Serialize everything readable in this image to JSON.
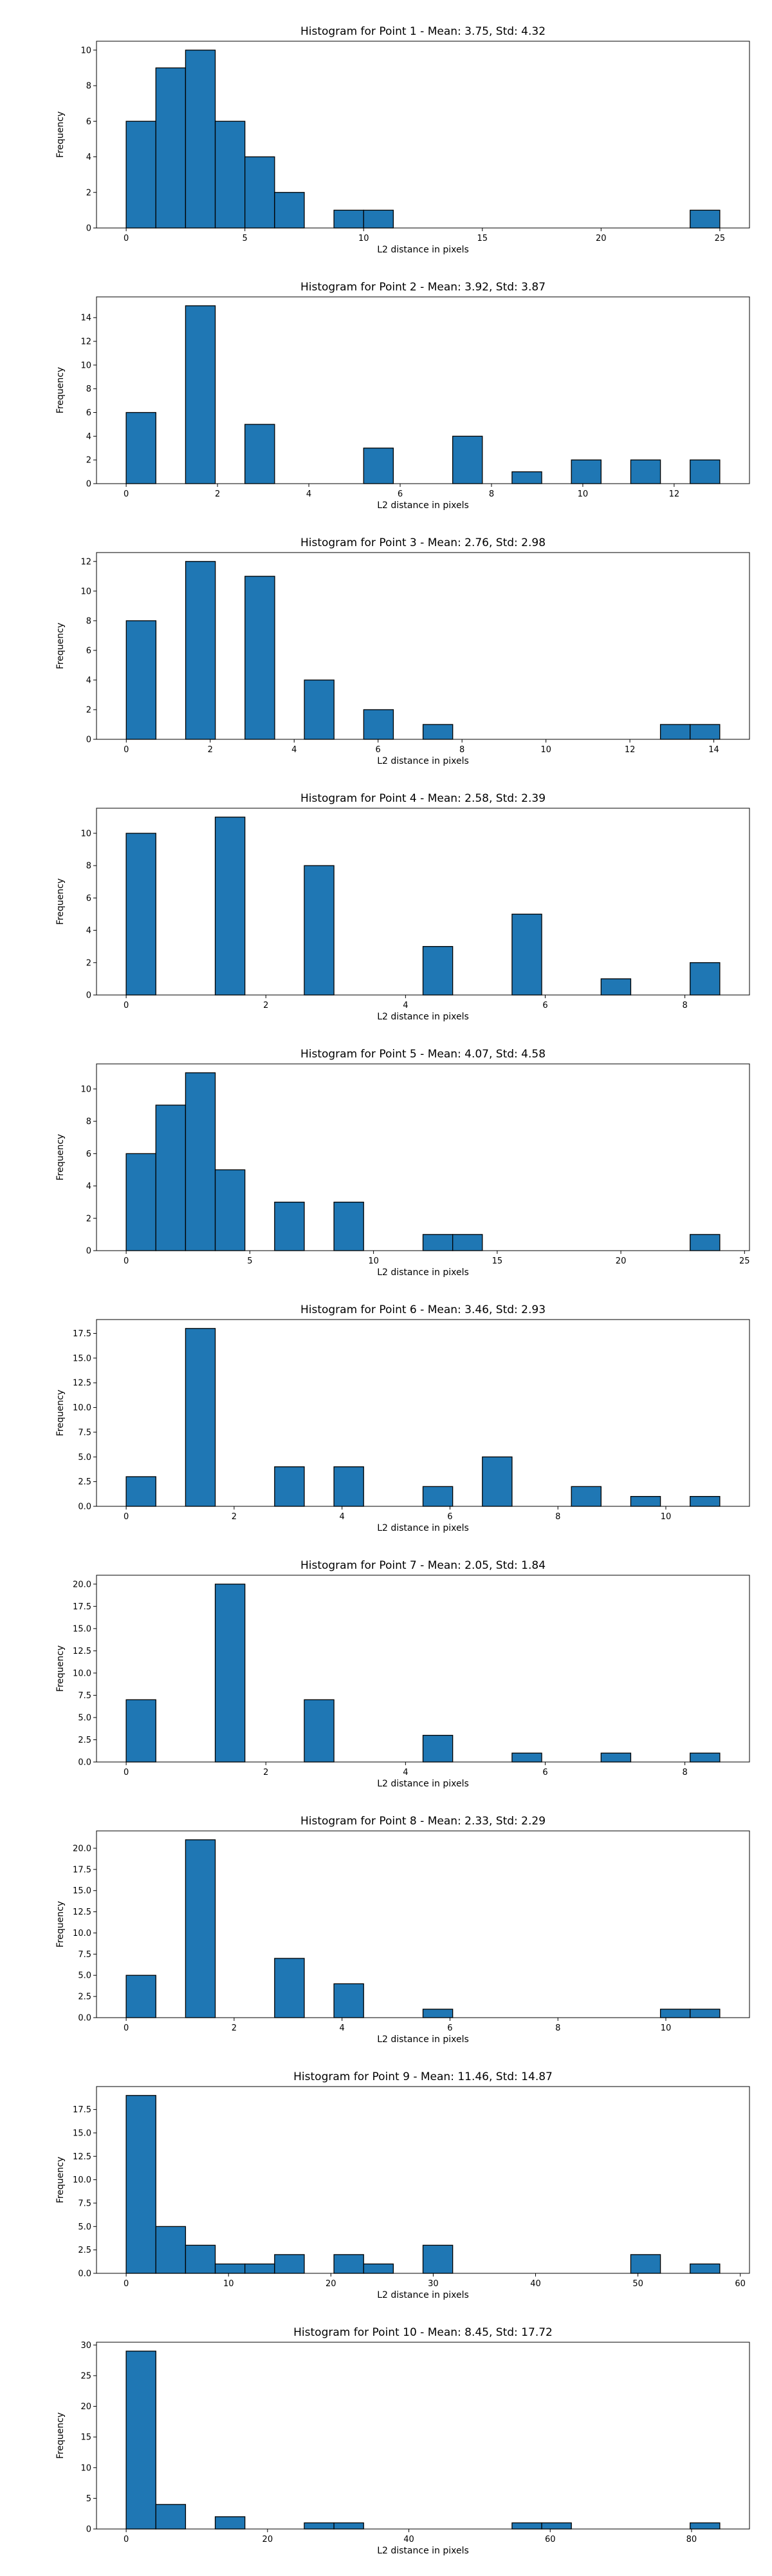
{
  "chart_data": [
    {
      "type": "bar",
      "title": "Histogram for Point 1 - Mean: 3.75, Std: 4.32",
      "xlabel": "L2 distance in pixels",
      "ylabel": "Frequency",
      "xlim": [
        -1.25,
        26.25
      ],
      "ylim": [
        0,
        10.5
      ],
      "bin_edges": [
        0,
        1.25,
        2.5,
        3.75,
        5,
        6.25,
        7.5,
        8.75,
        10,
        11.25,
        12.5,
        13.75,
        15,
        16.25,
        17.5,
        18.75,
        20,
        21.25,
        22.5,
        23.75,
        25
      ],
      "values": [
        6,
        9,
        10,
        6,
        4,
        2,
        0,
        1,
        1,
        0,
        0,
        0,
        0,
        0,
        0,
        0,
        0,
        0,
        0,
        1
      ],
      "xticks": [
        0,
        5,
        10,
        15,
        20,
        25
      ],
      "xtick_labels": [
        "0",
        "5",
        "10",
        "15",
        "20",
        "25"
      ],
      "yticks": [
        0,
        2,
        4,
        6,
        8,
        10
      ],
      "ytick_labels": [
        "0",
        "2",
        "4",
        "6",
        "8",
        "10"
      ],
      "grid": false,
      "bar_color": "#1f77b4",
      "edge_color": "#000000"
    },
    {
      "type": "bar",
      "title": "Histogram for Point 2 - Mean: 3.92, Std: 3.87",
      "xlabel": "L2 distance in pixels",
      "ylabel": "Frequency",
      "xlim": [
        -0.65,
        13.65
      ],
      "ylim": [
        0,
        15.75
      ],
      "bin_edges": [
        0,
        0.65,
        1.3,
        1.95,
        2.6,
        3.25,
        3.9,
        4.55,
        5.2,
        5.85,
        6.5,
        7.15,
        7.8,
        8.45,
        9.1,
        9.75,
        10.4,
        11.05,
        11.7,
        12.35,
        13
      ],
      "values": [
        6,
        0,
        15,
        0,
        5,
        0,
        0,
        0,
        3,
        0,
        0,
        4,
        0,
        1,
        0,
        2,
        0,
        2,
        0,
        2
      ],
      "xticks": [
        0,
        2,
        4,
        6,
        8,
        10,
        12
      ],
      "xtick_labels": [
        "0",
        "2",
        "4",
        "6",
        "8",
        "10",
        "12"
      ],
      "yticks": [
        0,
        2,
        4,
        6,
        8,
        10,
        12,
        14
      ],
      "ytick_labels": [
        "0",
        "2",
        "4",
        "6",
        "8",
        "10",
        "12",
        "14"
      ],
      "grid": false,
      "bar_color": "#1f77b4",
      "edge_color": "#000000"
    },
    {
      "type": "bar",
      "title": "Histogram for Point 3 - Mean: 2.76, Std: 2.98",
      "xlabel": "L2 distance in pixels",
      "ylabel": "Frequency",
      "xlim": [
        -0.71,
        14.85
      ],
      "ylim": [
        0,
        12.6
      ],
      "bin_edges": [
        0,
        0.707,
        1.414,
        2.121,
        2.828,
        3.536,
        4.243,
        4.95,
        5.657,
        6.364,
        7.071,
        7.778,
        8.485,
        9.192,
        9.899,
        10.607,
        11.314,
        12.021,
        12.728,
        13.435,
        14.142
      ],
      "values": [
        8,
        0,
        12,
        0,
        11,
        0,
        4,
        0,
        2,
        0,
        1,
        0,
        0,
        0,
        0,
        0,
        0,
        0,
        1,
        1
      ],
      "xticks": [
        0,
        2,
        4,
        6,
        8,
        10,
        12,
        14
      ],
      "xtick_labels": [
        "0",
        "2",
        "4",
        "6",
        "8",
        "10",
        "12",
        "14"
      ],
      "yticks": [
        0,
        2,
        4,
        6,
        8,
        10,
        12
      ],
      "ytick_labels": [
        "0",
        "2",
        "4",
        "6",
        "8",
        "10",
        "12"
      ],
      "grid": false,
      "bar_color": "#1f77b4",
      "edge_color": "#000000"
    },
    {
      "type": "bar",
      "title": "Histogram for Point 4 - Mean: 2.58, Std: 2.39",
      "xlabel": "L2 distance in pixels",
      "ylabel": "Frequency",
      "xlim": [
        -0.425,
        8.925
      ],
      "ylim": [
        0,
        11.55
      ],
      "bin_edges": [
        0,
        0.425,
        0.85,
        1.275,
        1.7,
        2.125,
        2.55,
        2.975,
        3.4,
        3.825,
        4.25,
        4.675,
        5.1,
        5.525,
        5.95,
        6.375,
        6.8,
        7.225,
        7.65,
        8.075,
        8.5
      ],
      "values": [
        10,
        0,
        0,
        11,
        0,
        0,
        8,
        0,
        0,
        0,
        3,
        0,
        0,
        5,
        0,
        0,
        1,
        0,
        0,
        2
      ],
      "xticks": [
        0,
        2,
        4,
        6,
        8
      ],
      "xtick_labels": [
        "0",
        "2",
        "4",
        "6",
        "8"
      ],
      "yticks": [
        0,
        2,
        4,
        6,
        8,
        10
      ],
      "ytick_labels": [
        "0",
        "2",
        "4",
        "6",
        "8",
        "10"
      ],
      "grid": false,
      "bar_color": "#1f77b4",
      "edge_color": "#000000"
    },
    {
      "type": "bar",
      "title": "Histogram for Point 5 - Mean: 4.07, Std: 4.58",
      "xlabel": "L2 distance in pixels",
      "ylabel": "Frequency",
      "xlim": [
        -1.2,
        25.2
      ],
      "ylim": [
        0,
        11.55
      ],
      "bin_edges": [
        0,
        1.2,
        2.4,
        3.6,
        4.8,
        6,
        7.2,
        8.4,
        9.6,
        10.8,
        12,
        13.2,
        14.4,
        15.6,
        16.8,
        18,
        19.2,
        20.4,
        21.6,
        22.8,
        24
      ],
      "values": [
        6,
        9,
        11,
        5,
        0,
        3,
        0,
        3,
        0,
        0,
        1,
        1,
        0,
        0,
        0,
        0,
        0,
        0,
        0,
        1
      ],
      "xticks": [
        0,
        5,
        10,
        15,
        20,
        25
      ],
      "xtick_labels": [
        "0",
        "5",
        "10",
        "15",
        "20",
        "25"
      ],
      "yticks": [
        0,
        2,
        4,
        6,
        8,
        10
      ],
      "ytick_labels": [
        "0",
        "2",
        "4",
        "6",
        "8",
        "10"
      ],
      "grid": false,
      "bar_color": "#1f77b4",
      "edge_color": "#000000"
    },
    {
      "type": "bar",
      "title": "Histogram for Point 6 - Mean: 3.46, Std: 2.93",
      "xlabel": "L2 distance in pixels",
      "ylabel": "Frequency",
      "xlim": [
        -0.55,
        11.55
      ],
      "ylim": [
        0,
        18.9
      ],
      "bin_edges": [
        0,
        0.55,
        1.1,
        1.65,
        2.2,
        2.75,
        3.3,
        3.85,
        4.4,
        4.95,
        5.5,
        6.05,
        6.6,
        7.15,
        7.7,
        8.25,
        8.8,
        9.35,
        9.9,
        10.45,
        11
      ],
      "values": [
        3,
        0,
        18,
        0,
        0,
        4,
        0,
        4,
        0,
        0,
        2,
        0,
        5,
        0,
        0,
        2,
        0,
        1,
        0,
        1
      ],
      "xticks": [
        0,
        2,
        4,
        6,
        8,
        10
      ],
      "xtick_labels": [
        "0",
        "2",
        "4",
        "6",
        "8",
        "10"
      ],
      "yticks": [
        0,
        2.5,
        5,
        7.5,
        10,
        12.5,
        15,
        17.5
      ],
      "ytick_labels": [
        "0.0",
        "2.5",
        "5.0",
        "7.5",
        "10.0",
        "12.5",
        "15.0",
        "17.5"
      ],
      "grid": false,
      "bar_color": "#1f77b4",
      "edge_color": "#000000"
    },
    {
      "type": "bar",
      "title": "Histogram for Point 7 - Mean: 2.05, Std: 1.84",
      "xlabel": "L2 distance in pixels",
      "ylabel": "Frequency",
      "xlim": [
        -0.425,
        8.925
      ],
      "ylim": [
        0,
        21
      ],
      "bin_edges": [
        0,
        0.425,
        0.85,
        1.275,
        1.7,
        2.125,
        2.55,
        2.975,
        3.4,
        3.825,
        4.25,
        4.675,
        5.1,
        5.525,
        5.95,
        6.375,
        6.8,
        7.225,
        7.65,
        8.075,
        8.5
      ],
      "values": [
        7,
        0,
        0,
        20,
        0,
        0,
        7,
        0,
        0,
        0,
        3,
        0,
        0,
        1,
        0,
        0,
        1,
        0,
        0,
        1
      ],
      "xticks": [
        0,
        2,
        4,
        6,
        8
      ],
      "xtick_labels": [
        "0",
        "2",
        "4",
        "6",
        "8"
      ],
      "yticks": [
        0,
        2.5,
        5,
        7.5,
        10,
        12.5,
        15,
        17.5,
        20
      ],
      "ytick_labels": [
        "0.0",
        "2.5",
        "5.0",
        "7.5",
        "10.0",
        "12.5",
        "15.0",
        "17.5",
        "20.0"
      ],
      "grid": false,
      "bar_color": "#1f77b4",
      "edge_color": "#000000"
    },
    {
      "type": "bar",
      "title": "Histogram for Point 8 - Mean: 2.33, Std: 2.29",
      "xlabel": "L2 distance in pixels",
      "ylabel": "Frequency",
      "xlim": [
        -0.55,
        11.55
      ],
      "ylim": [
        0,
        22.05
      ],
      "bin_edges": [
        0,
        0.55,
        1.1,
        1.65,
        2.2,
        2.75,
        3.3,
        3.85,
        4.4,
        4.95,
        5.5,
        6.05,
        6.6,
        7.15,
        7.7,
        8.25,
        8.8,
        9.35,
        9.9,
        10.45,
        11
      ],
      "values": [
        5,
        0,
        21,
        0,
        0,
        7,
        0,
        4,
        0,
        0,
        1,
        0,
        0,
        0,
        0,
        0,
        0,
        0,
        1,
        1
      ],
      "xticks": [
        0,
        2,
        4,
        6,
        8,
        10
      ],
      "xtick_labels": [
        "0",
        "2",
        "4",
        "6",
        "8",
        "10"
      ],
      "yticks": [
        0,
        2.5,
        5,
        7.5,
        10,
        12.5,
        15,
        17.5,
        20
      ],
      "ytick_labels": [
        "0.0",
        "2.5",
        "5.0",
        "7.5",
        "10.0",
        "12.5",
        "15.0",
        "17.5",
        "20.0"
      ],
      "grid": false,
      "bar_color": "#1f77b4",
      "edge_color": "#000000"
    },
    {
      "type": "bar",
      "title": "Histogram for Point 9 - Mean: 11.46, Std: 14.87",
      "xlabel": "L2 distance in pixels",
      "ylabel": "Frequency",
      "xlim": [
        -2.9,
        60.9
      ],
      "ylim": [
        0,
        19.95
      ],
      "bin_edges": [
        0,
        2.9,
        5.8,
        8.7,
        11.6,
        14.5,
        17.4,
        20.3,
        23.2,
        26.1,
        29,
        31.9,
        34.8,
        37.7,
        40.6,
        43.5,
        46.4,
        49.3,
        52.2,
        55.1,
        58
      ],
      "values": [
        19,
        5,
        3,
        1,
        1,
        2,
        0,
        2,
        1,
        0,
        3,
        0,
        0,
        0,
        0,
        0,
        0,
        2,
        0,
        1
      ],
      "xticks": [
        0,
        10,
        20,
        30,
        40,
        50,
        60
      ],
      "xtick_labels": [
        "0",
        "10",
        "20",
        "30",
        "40",
        "50",
        "60"
      ],
      "yticks": [
        0,
        2.5,
        5,
        7.5,
        10,
        12.5,
        15,
        17.5
      ],
      "ytick_labels": [
        "0.0",
        "2.5",
        "5.0",
        "7.5",
        "10.0",
        "12.5",
        "15.0",
        "17.5"
      ],
      "grid": false,
      "bar_color": "#1f77b4",
      "edge_color": "#000000"
    },
    {
      "type": "bar",
      "title": "Histogram for Point 10 - Mean: 8.45, Std: 17.72",
      "xlabel": "L2 distance in pixels",
      "ylabel": "Frequency",
      "xlim": [
        -4.2,
        88.2
      ],
      "ylim": [
        0,
        30.45
      ],
      "bin_edges": [
        0,
        4.2,
        8.4,
        12.6,
        16.8,
        21,
        25.2,
        29.4,
        33.6,
        37.8,
        42,
        46.2,
        50.4,
        54.6,
        58.8,
        63,
        67.2,
        71.4,
        75.6,
        79.8,
        84
      ],
      "values": [
        29,
        4,
        0,
        2,
        0,
        0,
        1,
        1,
        0,
        0,
        0,
        0,
        0,
        1,
        1,
        0,
        0,
        0,
        0,
        1
      ],
      "xticks": [
        0,
        20,
        40,
        60,
        80
      ],
      "xtick_labels": [
        "0",
        "20",
        "40",
        "60",
        "80"
      ],
      "yticks": [
        0,
        5,
        10,
        15,
        20,
        25,
        30
      ],
      "ytick_labels": [
        "0",
        "5",
        "10",
        "15",
        "20",
        "25",
        "30"
      ],
      "grid": false,
      "bar_color": "#1f77b4",
      "edge_color": "#000000"
    }
  ]
}
